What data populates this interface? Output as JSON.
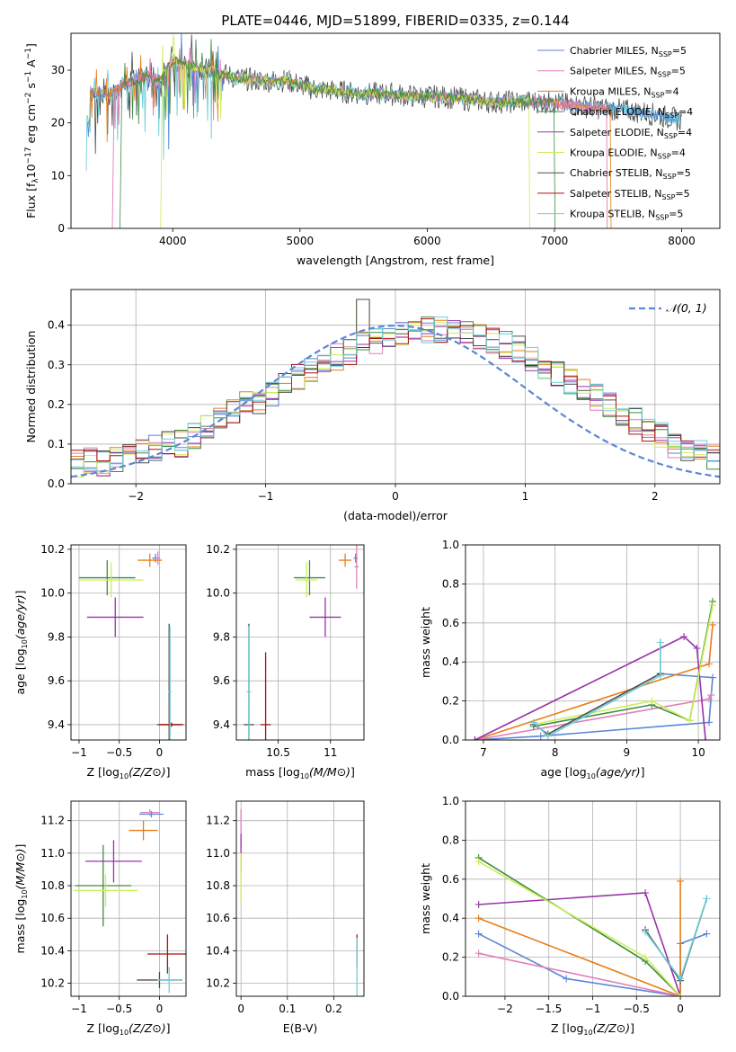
{
  "figure": {
    "title": "PLATE=0446, MJD=51899, FIBERID=0335, z=0.144"
  },
  "colors": {
    "c0": "#5a86d6",
    "c1": "#e87d17",
    "c2": "#e07fb8",
    "c3": "#3f8c3f",
    "c4": "#9933aa",
    "c5": "#ccee55",
    "c6": "#4d4d4d",
    "c7": "#aa1111",
    "c8": "#6ccfd8",
    "grid": "#b0b0b0"
  },
  "legend_spectrum": [
    {
      "label": "Chabrier MILES, N",
      "sub": "SSP",
      "post": "=5",
      "color": "#5a86d6"
    },
    {
      "label": "Salpeter MILES, N",
      "sub": "SSP",
      "post": "=5",
      "color": "#e07fb8"
    },
    {
      "label": "Kroupa MILES, N",
      "sub": "SSP",
      "post": "=4",
      "color": "#e87d17"
    },
    {
      "label": "Chabrier ELODIE, N",
      "sub": "SSP",
      "post": "=4",
      "color": "#3f8c3f"
    },
    {
      "label": "Salpeter ELODIE, N",
      "sub": "SSP",
      "post": "=4",
      "color": "#9933aa"
    },
    {
      "label": "Kroupa ELODIE, N",
      "sub": "SSP",
      "post": "=4",
      "color": "#ccee55"
    },
    {
      "label": "Chabrier STELIB, N",
      "sub": "SSP",
      "post": "=5",
      "color": "#4d4d4d"
    },
    {
      "label": "Salpeter STELIB, N",
      "sub": "SSP",
      "post": "=5",
      "color": "#aa1111"
    },
    {
      "label": "Kroupa STELIB, N",
      "sub": "SSP",
      "post": "=5",
      "color": "#6ccfd8"
    }
  ],
  "chart_data": [
    {
      "id": "spectrum",
      "type": "line",
      "xlabel": "wavelength [Angstrom, rest frame]",
      "ylabel": "Flux [f_λ10^-17 erg cm^-2 s^-1 A^-1]",
      "xlim": [
        3200,
        8300
      ],
      "ylim": [
        0,
        37
      ],
      "xticks": [
        4000,
        5000,
        6000,
        7000,
        8000
      ],
      "yticks": [
        0,
        10,
        20,
        30
      ],
      "x": [
        3350,
        3500,
        3600,
        3700,
        3800,
        3900,
        4000,
        4100,
        4300,
        4500,
        4700,
        4900,
        5100,
        5300,
        5500,
        5700,
        5900,
        6100,
        6300,
        6500,
        6700,
        6900,
        7100,
        7300,
        7500,
        7700,
        7900,
        8000
      ],
      "y": [
        26,
        25.5,
        27,
        28,
        29,
        28,
        32,
        31,
        30,
        28.5,
        28,
        28,
        26.5,
        26,
        25.5,
        25.5,
        25,
        25,
        24.5,
        24,
        24,
        24,
        23.5,
        23,
        22.5,
        22,
        21,
        20.5
      ]
    },
    {
      "id": "residuals",
      "type": "line",
      "xlabel": "(data-model)/error",
      "ylabel": "Normed distribution",
      "xlim": [
        -2.5,
        2.5
      ],
      "ylim": [
        0,
        0.49
      ],
      "xticks": [
        -2,
        -1,
        0,
        1,
        2
      ],
      "yticks": [
        0.0,
        0.1,
        0.2,
        0.3,
        0.4
      ],
      "legend": [
        "𝒩(0, 1)"
      ],
      "bin_width": 0.1,
      "bins_left": -2.5,
      "histogram": [
        0.05,
        0.06,
        0.05,
        0.06,
        0.07,
        0.08,
        0.09,
        0.1,
        0.1,
        0.12,
        0.14,
        0.16,
        0.18,
        0.2,
        0.21,
        0.23,
        0.25,
        0.27,
        0.29,
        0.31,
        0.32,
        0.33,
        0.35,
        0.36,
        0.37,
        0.38,
        0.38,
        0.39,
        0.39,
        0.39,
        0.38,
        0.37,
        0.36,
        0.35,
        0.34,
        0.32,
        0.3,
        0.28,
        0.26,
        0.24,
        0.22,
        0.2,
        0.18,
        0.16,
        0.14,
        0.12,
        0.1,
        0.09,
        0.08,
        0.07
      ]
    },
    {
      "id": "age_vs_Z",
      "type": "scatter",
      "xlabel": "Z [log10(Z/Z⊙)]",
      "ylabel": "age [log10(age/yr)]",
      "xlim": [
        -1.1,
        0.33
      ],
      "ylim": [
        9.33,
        10.22
      ],
      "xticks": [
        -1.0,
        -0.5,
        0.0
      ],
      "yticks": [
        9.4,
        9.6,
        9.8,
        10.0,
        10.2
      ],
      "points": [
        {
          "x": -0.05,
          "y": 10.16,
          "xerr": 0.04,
          "yerr": 0.02,
          "color": "#5a86d6"
        },
        {
          "x": -0.12,
          "y": 10.15,
          "xerr": 0.15,
          "yerr": 0.03,
          "color": "#e87d17"
        },
        {
          "x": -0.02,
          "y": 10.16,
          "xerr": 0.03,
          "yerr": 0.03,
          "color": "#e07fb8"
        },
        {
          "x": -0.65,
          "y": 10.07,
          "xerr": 0.35,
          "yerr": 0.08,
          "color": "#3f8c3f"
        },
        {
          "x": -0.55,
          "y": 9.89,
          "xerr": 0.35,
          "yerr": 0.09,
          "color": "#9933aa"
        },
        {
          "x": -0.6,
          "y": 10.06,
          "xerr": 0.4,
          "yerr": 0.08,
          "color": "#ccee55"
        },
        {
          "x": 0.12,
          "y": 9.4,
          "xerr": 0.15,
          "yerr": 0.46,
          "color": "#4d4d4d"
        },
        {
          "x": 0.15,
          "y": 9.4,
          "xerr": 0.15,
          "yerr": 0.01,
          "color": "#aa1111"
        },
        {
          "x": 0.13,
          "y": 9.55,
          "xerr": 0.02,
          "yerr": 0.3,
          "color": "#6ccfd8"
        }
      ]
    },
    {
      "id": "age_vs_mass",
      "type": "scatter",
      "xlabel": "mass [log10(M/M⊙)]",
      "ylabel": "",
      "xlim": [
        10.1,
        11.32
      ],
      "ylim": [
        9.33,
        10.22
      ],
      "xticks": [
        10.5,
        11.0
      ],
      "yticks": [
        9.4,
        9.6,
        9.8,
        10.0,
        10.2
      ],
      "points": [
        {
          "x": 11.24,
          "y": 10.16,
          "xerr": 0.02,
          "yerr": 0.02,
          "color": "#5a86d6"
        },
        {
          "x": 11.14,
          "y": 10.15,
          "xerr": 0.06,
          "yerr": 0.03,
          "color": "#e87d17"
        },
        {
          "x": 11.25,
          "y": 10.12,
          "xerr": 0.02,
          "yerr": 0.1,
          "color": "#e07fb8"
        },
        {
          "x": 10.8,
          "y": 10.07,
          "xerr": 0.15,
          "yerr": 0.08,
          "color": "#3f8c3f"
        },
        {
          "x": 10.95,
          "y": 9.89,
          "xerr": 0.15,
          "yerr": 0.09,
          "color": "#9933aa"
        },
        {
          "x": 10.77,
          "y": 10.06,
          "xerr": 0.1,
          "yerr": 0.08,
          "color": "#ccee55"
        },
        {
          "x": 10.22,
          "y": 9.4,
          "xerr": 0.05,
          "yerr": 0.46,
          "color": "#4d4d4d"
        },
        {
          "x": 10.38,
          "y": 9.4,
          "xerr": 0.05,
          "yerr": 0.33,
          "color": "#aa1111"
        },
        {
          "x": 10.22,
          "y": 9.55,
          "xerr": 0.02,
          "yerr": 0.3,
          "color": "#6ccfd8"
        }
      ]
    },
    {
      "id": "weight_vs_age",
      "type": "line",
      "xlabel": "age [log10(age/yr)]",
      "ylabel": "mass weight",
      "xlim": [
        6.75,
        10.3
      ],
      "ylim": [
        0.0,
        1.0
      ],
      "xticks": [
        7,
        8,
        9,
        10
      ],
      "yticks": [
        0.0,
        0.2,
        0.4,
        0.6,
        0.8,
        1.0
      ],
      "series": [
        {
          "color": "#5a86d6",
          "x": [
            6.88,
            7.8,
            10.15,
            10.2,
            9.47
          ],
          "y": [
            0.0,
            0.02,
            0.09,
            0.32,
            0.34
          ]
        },
        {
          "color": "#e87d17",
          "x": [
            6.88,
            10.15,
            10.2
          ],
          "y": [
            0.0,
            0.39,
            0.59
          ]
        },
        {
          "color": "#e07fb8",
          "x": [
            6.88,
            10.15,
            10.18
          ],
          "y": [
            0.0,
            0.21,
            0.23
          ]
        },
        {
          "color": "#3f8c3f",
          "x": [
            7.7,
            9.35,
            9.88,
            10.2
          ],
          "y": [
            0.07,
            0.18,
            0.1,
            0.71
          ]
        },
        {
          "color": "#9933aa",
          "x": [
            6.88,
            9.8,
            9.98,
            10.1
          ],
          "y": [
            0.0,
            0.53,
            0.47,
            0.0
          ]
        },
        {
          "color": "#ccee55",
          "x": [
            7.7,
            9.35,
            9.88,
            10.2
          ],
          "y": [
            0.08,
            0.2,
            0.1,
            0.69
          ]
        },
        {
          "color": "#4d4d4d",
          "x": [
            7.7,
            7.9,
            9.47,
            9.47
          ],
          "y": [
            0.08,
            0.03,
            0.34,
            0.5
          ]
        },
        {
          "color": "#6ccfd8",
          "x": [
            7.7,
            7.9,
            9.47,
            9.47
          ],
          "y": [
            0.09,
            0.02,
            0.33,
            0.5
          ]
        }
      ]
    },
    {
      "id": "mass_vs_Z",
      "type": "scatter",
      "xlabel": "Z [log10(Z/Z⊙)]",
      "ylabel": "mass [log10(M/M⊙)]",
      "xlim": [
        -1.1,
        0.33
      ],
      "ylim": [
        10.12,
        11.32
      ],
      "xticks": [
        -1.0,
        -0.5,
        0.0
      ],
      "yticks": [
        10.2,
        10.4,
        10.6,
        10.8,
        11.0,
        11.2
      ],
      "points": [
        {
          "x": -0.1,
          "y": 11.24,
          "xerr": 0.15,
          "yerr": 0.02,
          "color": "#5a86d6"
        },
        {
          "x": -0.2,
          "y": 11.14,
          "xerr": 0.18,
          "yerr": 0.06,
          "color": "#e87d17"
        },
        {
          "x": -0.12,
          "y": 11.25,
          "xerr": 0.12,
          "yerr": 0.02,
          "color": "#e07fb8"
        },
        {
          "x": -0.7,
          "y": 10.8,
          "xerr": 0.35,
          "yerr": 0.25,
          "color": "#3f8c3f"
        },
        {
          "x": -0.57,
          "y": 10.95,
          "xerr": 0.35,
          "yerr": 0.13,
          "color": "#9933aa"
        },
        {
          "x": -0.67,
          "y": 10.77,
          "xerr": 0.4,
          "yerr": 0.1,
          "color": "#ccee55"
        },
        {
          "x": 0.0,
          "y": 10.22,
          "xerr": 0.28,
          "yerr": 0.05,
          "color": "#4d4d4d"
        },
        {
          "x": 0.1,
          "y": 10.38,
          "xerr": 0.25,
          "yerr": 0.12,
          "color": "#aa1111"
        },
        {
          "x": 0.12,
          "y": 10.22,
          "xerr": 0.15,
          "yerr": 0.08,
          "color": "#6ccfd8"
        }
      ]
    },
    {
      "id": "mass_vs_ebv",
      "type": "scatter",
      "xlabel": "E(B-V)",
      "ylabel": "",
      "xlim": [
        -0.01,
        0.265
      ],
      "ylim": [
        10.12,
        11.32
      ],
      "xticks": [
        0.0,
        0.1,
        0.2
      ],
      "yticks": [
        10.2,
        10.4,
        10.6,
        10.8,
        11.0,
        11.2
      ],
      "points": [
        {
          "x": 0.0,
          "y": 11.15,
          "xerr": 0,
          "yerr": 0.12,
          "color": "#e07fb8"
        },
        {
          "x": 0.0,
          "y": 11.0,
          "xerr": 0,
          "yerr": 0.12,
          "color": "#9933aa"
        },
        {
          "x": 0.0,
          "y": 10.85,
          "xerr": 0,
          "yerr": 0.15,
          "color": "#ccee55"
        },
        {
          "x": 0.25,
          "y": 10.4,
          "xerr": 0,
          "yerr": 0.1,
          "color": "#aa1111"
        },
        {
          "x": 0.25,
          "y": 10.3,
          "xerr": 0,
          "yerr": 0.18,
          "color": "#6ccfd8"
        }
      ]
    },
    {
      "id": "weight_vs_Z",
      "type": "line",
      "xlabel": "Z [log10(Z/Z⊙)]",
      "ylabel": "mass weight",
      "xlim": [
        -2.45,
        0.45
      ],
      "ylim": [
        0.0,
        1.0
      ],
      "xticks": [
        -2.0,
        -1.5,
        -1.0,
        -0.5,
        0.0
      ],
      "yticks": [
        0.0,
        0.2,
        0.4,
        0.6,
        0.8,
        1.0
      ],
      "series": [
        {
          "color": "#5a86d6",
          "x": [
            -2.3,
            -1.3,
            0.0,
            0.0,
            0.3
          ],
          "y": [
            0.32,
            0.09,
            0.0,
            0.27,
            0.32
          ]
        },
        {
          "color": "#e87d17",
          "x": [
            -2.3,
            0.0,
            0.0
          ],
          "y": [
            0.4,
            0.0,
            0.59
          ]
        },
        {
          "color": "#e07fb8",
          "x": [
            -2.3,
            0.0
          ],
          "y": [
            0.22,
            0.0
          ]
        },
        {
          "color": "#9933aa",
          "x": [
            -2.3,
            -0.4,
            0.0
          ],
          "y": [
            0.47,
            0.53,
            0.0
          ]
        },
        {
          "color": "#3f8c3f",
          "x": [
            -2.3,
            -0.4,
            0.0
          ],
          "y": [
            0.71,
            0.18,
            0.0
          ]
        },
        {
          "color": "#ccee55",
          "x": [
            -2.3,
            -0.4,
            0.0
          ],
          "y": [
            0.69,
            0.2,
            0.0
          ]
        },
        {
          "color": "#4d4d4d",
          "x": [
            -0.4,
            0.0,
            0.3
          ],
          "y": [
            0.34,
            0.08,
            0.5
          ]
        },
        {
          "color": "#6ccfd8",
          "x": [
            -0.4,
            0.0,
            0.3
          ],
          "y": [
            0.33,
            0.09,
            0.5
          ]
        }
      ]
    }
  ]
}
